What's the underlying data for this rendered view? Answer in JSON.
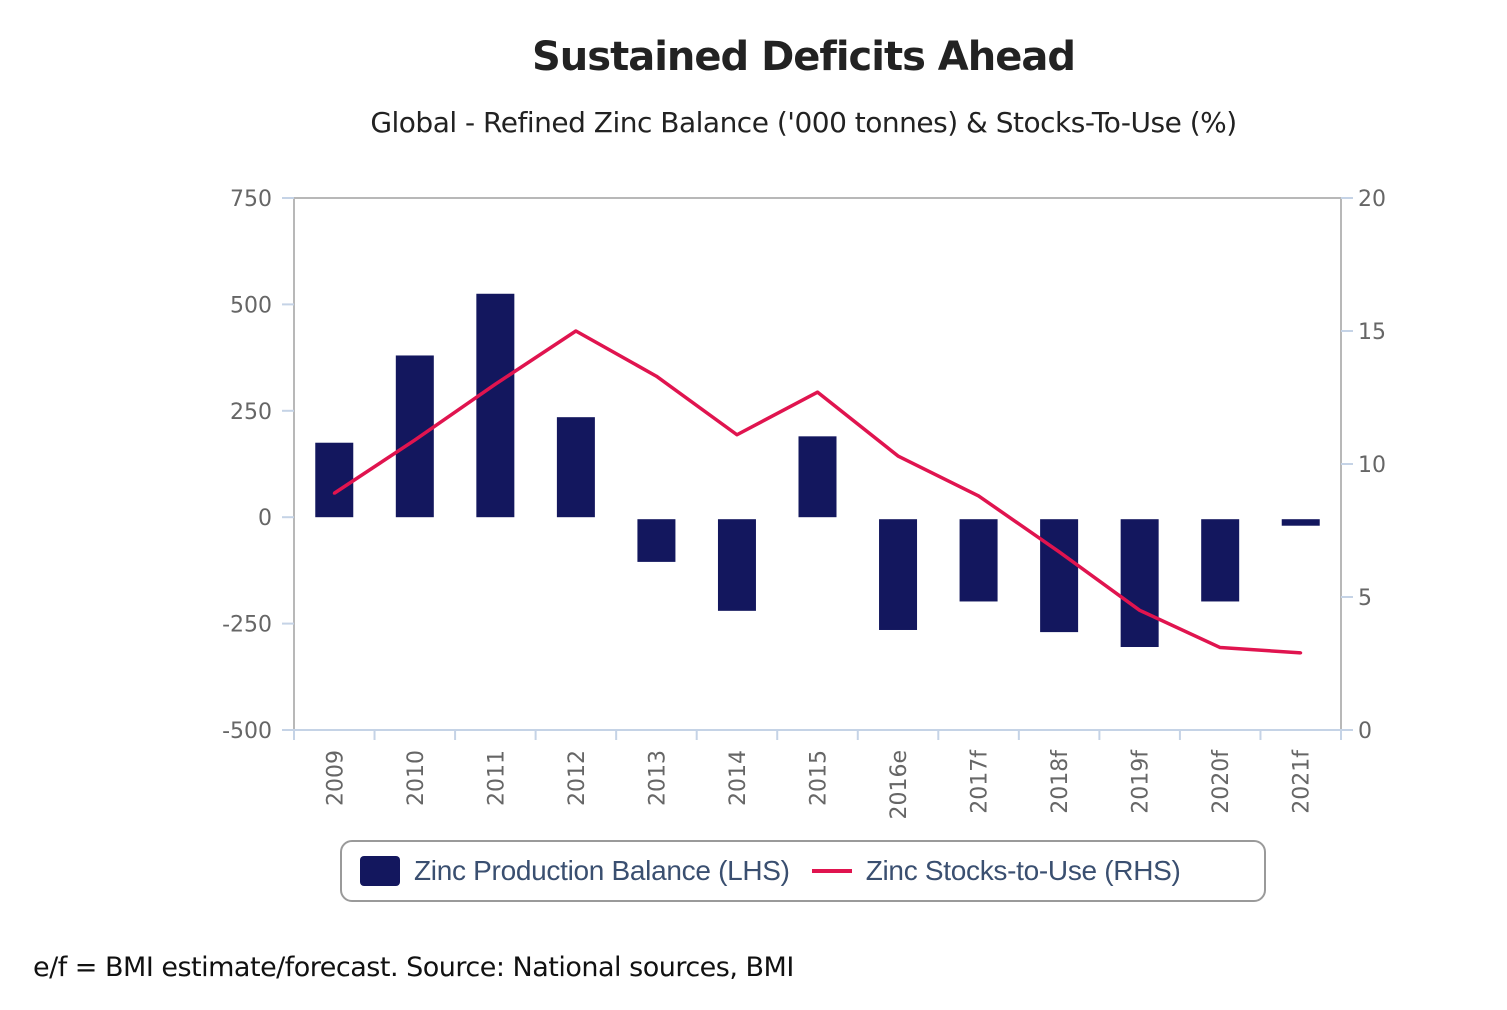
{
  "chart_data": {
    "type": "bar+line",
    "title": "Sustained Deficits Ahead",
    "subtitle": "Global - Refined Zinc Balance ('000 tonnes) & Stocks-To-Use (%)",
    "categories": [
      "2009",
      "2010",
      "2011",
      "2012",
      "2013",
      "2014",
      "2015",
      "2016e",
      "2017f",
      "2018f",
      "2019f",
      "2020f",
      "2021f"
    ],
    "series": [
      {
        "name": "Zinc Production Balance (LHS)",
        "type": "bar",
        "axis": "left",
        "color": "#13175e",
        "values": [
          175,
          380,
          525,
          235,
          -105,
          -220,
          190,
          -265,
          -198,
          -270,
          -305,
          -198,
          -20
        ]
      },
      {
        "name": "Zinc Stocks-to-Use (RHS)",
        "type": "line",
        "axis": "right",
        "color": "#e0144f",
        "values": [
          8.9,
          10.9,
          13.0,
          15.0,
          13.3,
          11.1,
          12.7,
          10.3,
          8.8,
          6.7,
          4.5,
          3.1,
          2.9
        ]
      }
    ],
    "left_axis": {
      "label": "",
      "ylim": [
        -500,
        750
      ],
      "ticks": [
        750,
        500,
        250,
        0,
        -250,
        -500
      ]
    },
    "right_axis": {
      "label": "",
      "ylim": [
        0,
        20
      ],
      "ticks": [
        20,
        15,
        10,
        5,
        0
      ]
    },
    "xlabel": "",
    "grid": false,
    "legend_position": "bottom"
  },
  "footnote": "e/f = BMI estimate/forecast. Source: National sources, BMI"
}
